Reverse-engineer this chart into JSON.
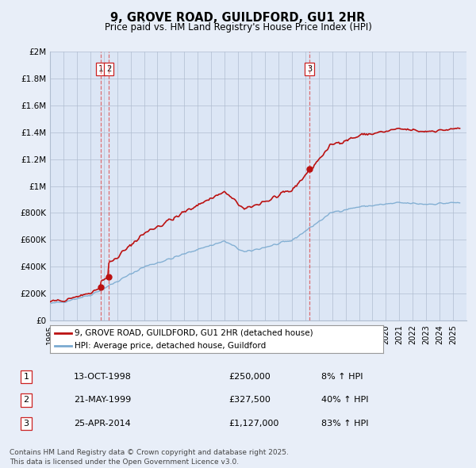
{
  "title": "9, GROVE ROAD, GUILDFORD, GU1 2HR",
  "subtitle": "Price paid vs. HM Land Registry's House Price Index (HPI)",
  "bg_color": "#e8eef8",
  "plot_bg_color": "#dce6f5",
  "grid_color": "#b0bdd0",
  "hpi_line_color": "#7aaad0",
  "price_line_color": "#bb1111",
  "ylabel_ticks": [
    "£0",
    "£200K",
    "£400K",
    "£600K",
    "£800K",
    "£1M",
    "£1.2M",
    "£1.4M",
    "£1.6M",
    "£1.8M",
    "£2M"
  ],
  "ytick_values": [
    0,
    200000,
    400000,
    600000,
    800000,
    1000000,
    1200000,
    1400000,
    1600000,
    1800000,
    2000000
  ],
  "xmin": 1995,
  "xmax": 2026,
  "ymin": 0,
  "ymax": 2000000,
  "transactions": [
    {
      "num": 1,
      "date_str": "13-OCT-1998",
      "price": 250000,
      "pct": "8% ↑ HPI",
      "x": 1998.78
    },
    {
      "num": 2,
      "date_str": "21-MAY-1999",
      "price": 327500,
      "pct": "40% ↑ HPI",
      "x": 1999.38
    },
    {
      "num": 3,
      "date_str": "25-APR-2014",
      "price": 1127000,
      "pct": "83% ↑ HPI",
      "x": 2014.32
    }
  ],
  "legend_entries": [
    "9, GROVE ROAD, GUILDFORD, GU1 2HR (detached house)",
    "HPI: Average price, detached house, Guildford"
  ],
  "footnote": "Contains HM Land Registry data © Crown copyright and database right 2025.\nThis data is licensed under the Open Government Licence v3.0.",
  "row_dates": [
    "13-OCT-1998",
    "21-MAY-1999",
    "25-APR-2014"
  ],
  "row_prices": [
    "£250,000",
    "£327,500",
    "£1,127,000"
  ],
  "row_pcts": [
    "8% ↑ HPI",
    "40% ↑ HPI",
    "83% ↑ HPI"
  ]
}
